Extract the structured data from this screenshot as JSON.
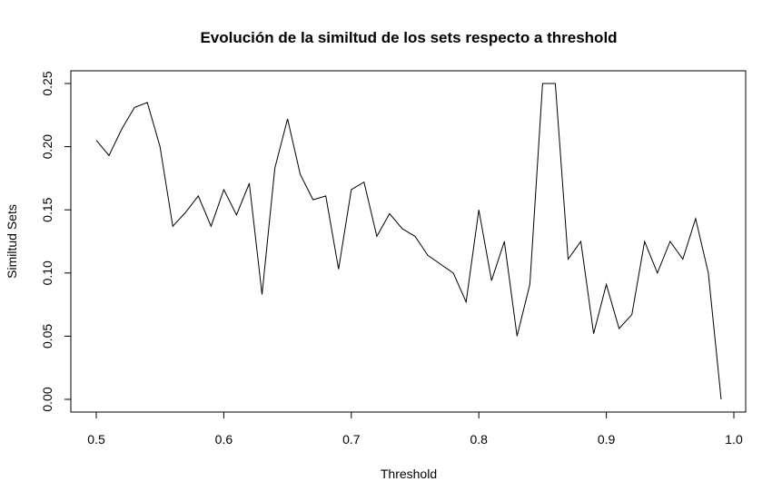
{
  "chart_data": {
    "type": "line",
    "title": "Evolución de la similtud de los sets respecto a threshold",
    "xlabel": "Threshold",
    "ylabel": "Similtud Sets",
    "xlim": [
      0.5,
      0.99
    ],
    "ylim": [
      0.0,
      0.25
    ],
    "grid": false,
    "x_ticks": [
      0.5,
      0.6,
      0.7,
      0.8,
      0.9,
      1.0
    ],
    "x_tick_labels": [
      "0.5",
      "0.6",
      "0.7",
      "0.8",
      "0.9",
      "1.0"
    ],
    "y_ticks": [
      0.0,
      0.05,
      0.1,
      0.15,
      0.2,
      0.25
    ],
    "y_tick_labels": [
      "0.00",
      "0.05",
      "0.10",
      "0.15",
      "0.20",
      "0.25"
    ],
    "series": [
      {
        "name": "Similtud Sets",
        "color": "#000000",
        "x": [
          0.5,
          0.51,
          0.52,
          0.53,
          0.54,
          0.55,
          0.56,
          0.57,
          0.58,
          0.59,
          0.6,
          0.61,
          0.62,
          0.63,
          0.64,
          0.65,
          0.66,
          0.67,
          0.68,
          0.69,
          0.7,
          0.71,
          0.72,
          0.73,
          0.74,
          0.75,
          0.76,
          0.77,
          0.78,
          0.79,
          0.8,
          0.81,
          0.82,
          0.83,
          0.84,
          0.85,
          0.86,
          0.87,
          0.88,
          0.89,
          0.9,
          0.91,
          0.92,
          0.93,
          0.94,
          0.95,
          0.96,
          0.97,
          0.98,
          0.99
        ],
        "values": [
          0.205,
          0.193,
          0.214,
          0.231,
          0.235,
          0.2,
          0.137,
          0.148,
          0.161,
          0.137,
          0.166,
          0.146,
          0.171,
          0.083,
          0.183,
          0.222,
          0.178,
          0.158,
          0.161,
          0.103,
          0.166,
          0.172,
          0.129,
          0.147,
          0.135,
          0.129,
          0.114,
          0.107,
          0.1,
          0.077,
          0.15,
          0.094,
          0.125,
          0.05,
          0.091,
          0.25,
          0.25,
          0.111,
          0.125,
          0.052,
          0.091,
          0.056,
          0.067,
          0.125,
          0.1,
          0.125,
          0.111,
          0.143,
          0.1,
          0.0
        ]
      }
    ]
  }
}
